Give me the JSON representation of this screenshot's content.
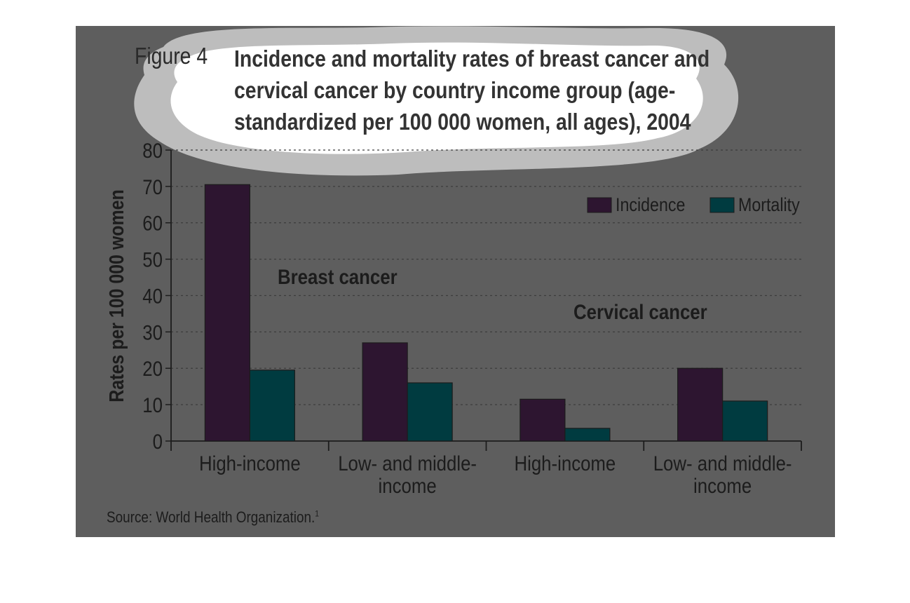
{
  "figure": {
    "prefix": "Figure 4",
    "title": "Incidence and mortality rates of breast cancer and cervical cancer by country income group (age-standardized per 100 000 women, all ages), 2004",
    "source": "Source: World Health Organization.",
    "source_ref": "1"
  },
  "colors": {
    "panel": "#5e5e5e",
    "incidence": "#2d1530",
    "mortality": "#003b40",
    "text": "#1c1c1c"
  },
  "chart_data": {
    "type": "bar",
    "ylabel": "Rates per 100 000 women",
    "xlabel": "",
    "ylim": [
      0,
      80
    ],
    "yticks": [
      0,
      10,
      20,
      30,
      40,
      50,
      60,
      70,
      80
    ],
    "grid": true,
    "legend_position": "top-right",
    "groups": [
      {
        "name": "Breast cancer",
        "categories": [
          "High-income",
          "Low- and middle-income"
        ]
      },
      {
        "name": "Cervical cancer",
        "categories": [
          "High-income",
          "Low- and middle-income"
        ]
      }
    ],
    "categories": [
      {
        "lines": [
          "High-income"
        ]
      },
      {
        "lines": [
          "Low- and middle-",
          "income"
        ]
      },
      {
        "lines": [
          "High-income"
        ]
      },
      {
        "lines": [
          "Low- and middle-",
          "income"
        ]
      }
    ],
    "series": [
      {
        "name": "Incidence",
        "values": [
          70.5,
          27,
          11.5,
          20
        ]
      },
      {
        "name": "Mortality",
        "values": [
          19.5,
          16,
          3.5,
          11
        ]
      }
    ]
  }
}
